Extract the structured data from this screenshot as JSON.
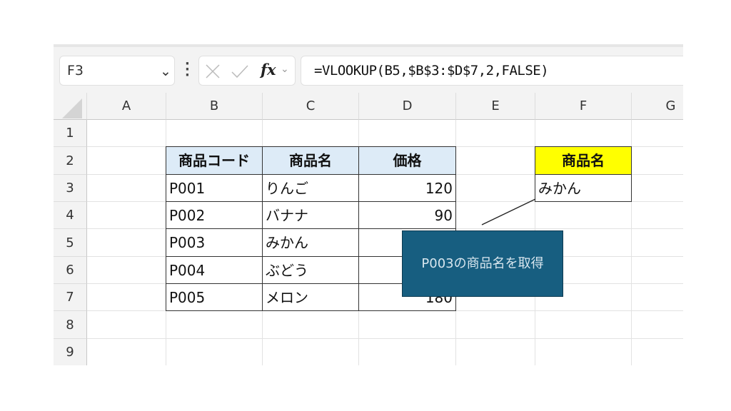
{
  "name_box": {
    "value": "F3"
  },
  "formula_bar": {
    "cancel_icon": "x-icon",
    "enter_icon": "check-icon",
    "fx_label": "fx",
    "formula": "=VLOOKUP(B5,$B$3:$D$7,2,FALSE)"
  },
  "columns": [
    "A",
    "B",
    "C",
    "D",
    "E",
    "F",
    "G"
  ],
  "rows": [
    "1",
    "2",
    "3",
    "4",
    "5",
    "6",
    "7",
    "8",
    "9"
  ],
  "table": {
    "headers": [
      "商品コード",
      "商品名",
      "価格"
    ],
    "rows": [
      [
        "P001",
        "りんご",
        "120"
      ],
      [
        "P002",
        "バナナ",
        "90"
      ],
      [
        "P003",
        "みかん",
        ""
      ],
      [
        "P004",
        "ぶどう",
        ""
      ],
      [
        "P005",
        "メロン",
        "180"
      ]
    ]
  },
  "lookup": {
    "header": "商品名",
    "result": "みかん"
  },
  "callout": {
    "text": "P003の商品名を取得",
    "color": "#175e80"
  },
  "colors": {
    "header_fill": "#ddebf7",
    "lookup_header_fill": "#ffff00"
  }
}
